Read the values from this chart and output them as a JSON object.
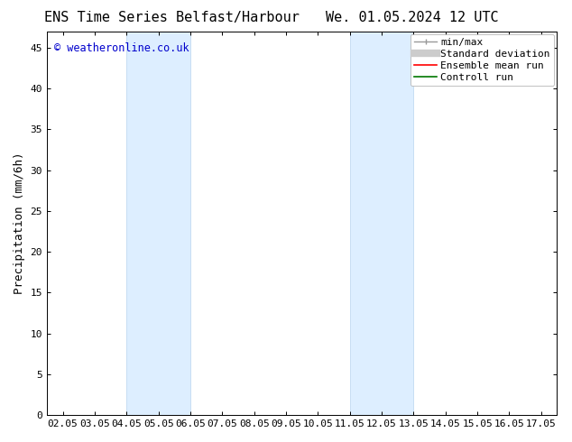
{
  "title_left": "ENS Time Series Belfast/Harbour",
  "title_right": "We. 01.05.2024 12 UTC",
  "ylabel": "Precipitation (mm/6h)",
  "xlim": [
    1.5,
    17.5
  ],
  "ylim": [
    0,
    47
  ],
  "yticks": [
    0,
    5,
    10,
    15,
    20,
    25,
    30,
    35,
    40,
    45
  ],
  "xtick_labels": [
    "02.05",
    "03.05",
    "04.05",
    "05.05",
    "06.05",
    "07.05",
    "08.05",
    "09.05",
    "10.05",
    "11.05",
    "12.05",
    "13.05",
    "14.05",
    "15.05",
    "16.05",
    "17.05"
  ],
  "xtick_positions": [
    2,
    3,
    4,
    5,
    6,
    7,
    8,
    9,
    10,
    11,
    12,
    13,
    14,
    15,
    16,
    17
  ],
  "shaded_regions": [
    {
      "x_start": 4.0,
      "x_end": 6.0
    },
    {
      "x_start": 11.0,
      "x_end": 13.0
    }
  ],
  "shaded_color": "#ddeeff",
  "shaded_edge_color": "#b8d4ee",
  "background_color": "#ffffff",
  "plot_bg_color": "#ffffff",
  "watermark_text": "© weatheronline.co.uk",
  "watermark_color": "#0000cc",
  "title_fontsize": 11,
  "tick_fontsize": 8,
  "ylabel_fontsize": 9,
  "legend_fontsize": 8
}
